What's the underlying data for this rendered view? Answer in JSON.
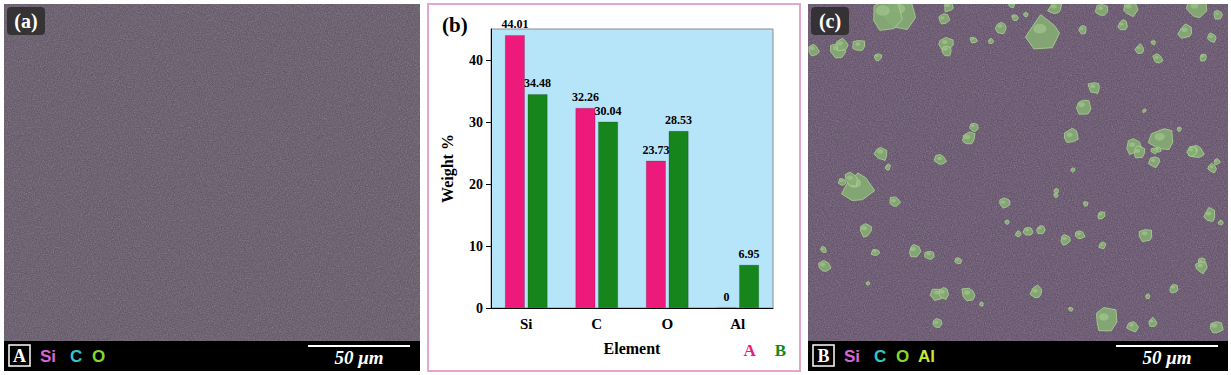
{
  "panels": {
    "a": {
      "label": "(a)",
      "legend_key": "A",
      "elements": [
        {
          "text": "Si",
          "color": "#d866d8"
        },
        {
          "text": "C",
          "color": "#2cc9c9"
        },
        {
          "text": "O",
          "color": "#86d82a"
        }
      ],
      "scale_bar": "50 μm"
    },
    "c": {
      "label": "(c)",
      "legend_key": "B",
      "elements": [
        {
          "text": "Si",
          "color": "#d866d8"
        },
        {
          "text": "C",
          "color": "#2cc9c9"
        },
        {
          "text": "O",
          "color": "#86d82a"
        },
        {
          "text": "Al",
          "color": "#c6e83a"
        }
      ],
      "scale_bar": "50 μm"
    }
  },
  "chart_data": {
    "type": "bar",
    "title": "(b)",
    "x_label": "Element",
    "y_label": "Weight %",
    "categories": [
      "Si",
      "C",
      "O",
      "Al"
    ],
    "series": [
      {
        "name": "A",
        "color": "#ee1a7b",
        "values": [
          44.01,
          32.26,
          23.73,
          0
        ]
      },
      {
        "name": "B",
        "color": "#16861c",
        "values": [
          34.48,
          30.04,
          28.53,
          6.95
        ]
      }
    ],
    "ylim": [
      0,
      45
    ],
    "yticks": [
      0,
      10,
      20,
      30,
      40
    ],
    "data_labels": true,
    "grid": false,
    "legend": "lower right"
  }
}
